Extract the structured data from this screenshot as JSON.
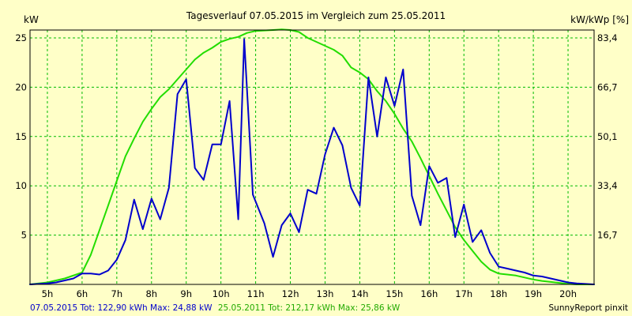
{
  "chart_data": {
    "type": "line",
    "title": "Tagesverlauf 07.05.2015 im Vergleich zum 25.05.2011",
    "ylabel_left": "kW",
    "ylabel_right": "kW/kWp [%]",
    "x_ticks": [
      "5h",
      "6h",
      "7h",
      "8h",
      "9h",
      "10h",
      "11h",
      "12h",
      "13h",
      "14h",
      "15h",
      "16h",
      "17h",
      "18h",
      "19h",
      "20h"
    ],
    "x_range_hours": [
      4.5,
      20.75
    ],
    "y_left": {
      "ticks": [
        "5",
        "10",
        "15",
        "20",
        "25"
      ],
      "tick_values": [
        5,
        10,
        15,
        20,
        25
      ],
      "range": [
        0,
        25.8
      ]
    },
    "y_right": {
      "ticks": [
        "16,7",
        "33,4",
        "50,1",
        "66,7",
        "83,4"
      ]
    },
    "grid": true,
    "background": "#ffffc8",
    "plot_background": "#ffffc8",
    "grid_color": "#00bb00",
    "series": [
      {
        "name": "07.05.2015",
        "color": "#0000cc",
        "x": [
          4.5,
          5.0,
          5.25,
          5.5,
          5.75,
          6.0,
          6.25,
          6.5,
          6.75,
          7.0,
          7.25,
          7.5,
          7.75,
          8.0,
          8.25,
          8.5,
          8.75,
          9.0,
          9.25,
          9.5,
          9.75,
          10.0,
          10.25,
          10.5,
          10.67,
          10.92,
          11.25,
          11.5,
          11.75,
          12.0,
          12.25,
          12.5,
          12.75,
          13.0,
          13.25,
          13.5,
          13.75,
          14.0,
          14.25,
          14.5,
          14.75,
          15.0,
          15.25,
          15.5,
          15.75,
          16.0,
          16.25,
          16.5,
          16.75,
          17.0,
          17.25,
          17.5,
          17.75,
          18.0,
          18.25,
          18.5,
          18.75,
          19.0,
          19.25,
          19.5,
          19.75,
          20.0,
          20.25,
          20.5,
          20.75
        ],
        "y": [
          0,
          0.1,
          0.2,
          0.4,
          0.6,
          1.1,
          1.1,
          1.0,
          1.4,
          2.5,
          4.5,
          8.6,
          5.6,
          8.7,
          6.6,
          9.8,
          19.3,
          20.8,
          11.8,
          10.6,
          14.2,
          14.2,
          18.6,
          6.6,
          24.88,
          9.1,
          6.2,
          2.8,
          6.0,
          7.2,
          5.3,
          9.6,
          9.2,
          13.2,
          15.9,
          14.1,
          9.8,
          8.0,
          21.0,
          15.0,
          21.0,
          18.1,
          21.8,
          9.0,
          6.0,
          12.0,
          10.3,
          10.8,
          4.8,
          8.1,
          4.3,
          5.5,
          3.2,
          1.8,
          1.6,
          1.4,
          1.2,
          0.9,
          0.8,
          0.6,
          0.4,
          0.2,
          0.1,
          0.05,
          0
        ]
      },
      {
        "name": "25.05.2011",
        "color": "#22dd00",
        "x": [
          4.5,
          5.0,
          5.5,
          6.0,
          6.25,
          6.5,
          6.75,
          7.0,
          7.25,
          7.5,
          7.75,
          8.0,
          8.25,
          8.5,
          8.75,
          9.0,
          9.25,
          9.5,
          9.75,
          10.0,
          10.25,
          10.5,
          10.75,
          11.0,
          11.25,
          11.5,
          11.75,
          12.0,
          12.25,
          12.5,
          12.75,
          13.0,
          13.25,
          13.5,
          13.75,
          14.0,
          14.25,
          14.5,
          14.75,
          15.0,
          15.25,
          15.5,
          15.75,
          16.0,
          16.25,
          16.5,
          16.75,
          17.0,
          17.25,
          17.5,
          17.75,
          18.0,
          18.25,
          18.5,
          18.75,
          19.0,
          19.25,
          19.5,
          19.75,
          20.0,
          20.25,
          20.5,
          20.75
        ],
        "y": [
          0,
          0.2,
          0.6,
          1.2,
          3.0,
          5.5,
          8.0,
          10.5,
          13.0,
          14.8,
          16.5,
          17.8,
          19.0,
          19.8,
          20.8,
          21.8,
          22.8,
          23.5,
          24.0,
          24.6,
          24.9,
          25.1,
          25.5,
          25.7,
          25.75,
          25.8,
          25.86,
          25.8,
          25.6,
          25.0,
          24.6,
          24.2,
          23.8,
          23.2,
          22.0,
          21.5,
          20.8,
          19.6,
          18.6,
          17.3,
          15.8,
          14.5,
          12.8,
          11.0,
          9.2,
          7.5,
          5.8,
          4.5,
          3.4,
          2.3,
          1.5,
          1.1,
          1.0,
          0.9,
          0.7,
          0.5,
          0.35,
          0.25,
          0.15,
          0.05,
          0,
          0,
          0
        ]
      }
    ]
  },
  "footer": {
    "blue_text": "07.05.2015 Tot: 122,90 kWh Max: 24,88 kW",
    "green_text": "25.05.2011 Tot: 212,17 kWh Max: 25,86 kW",
    "credit": "SunnyReport pinxit",
    "blue_color": "#0000cc",
    "green_color": "#22aa00"
  }
}
